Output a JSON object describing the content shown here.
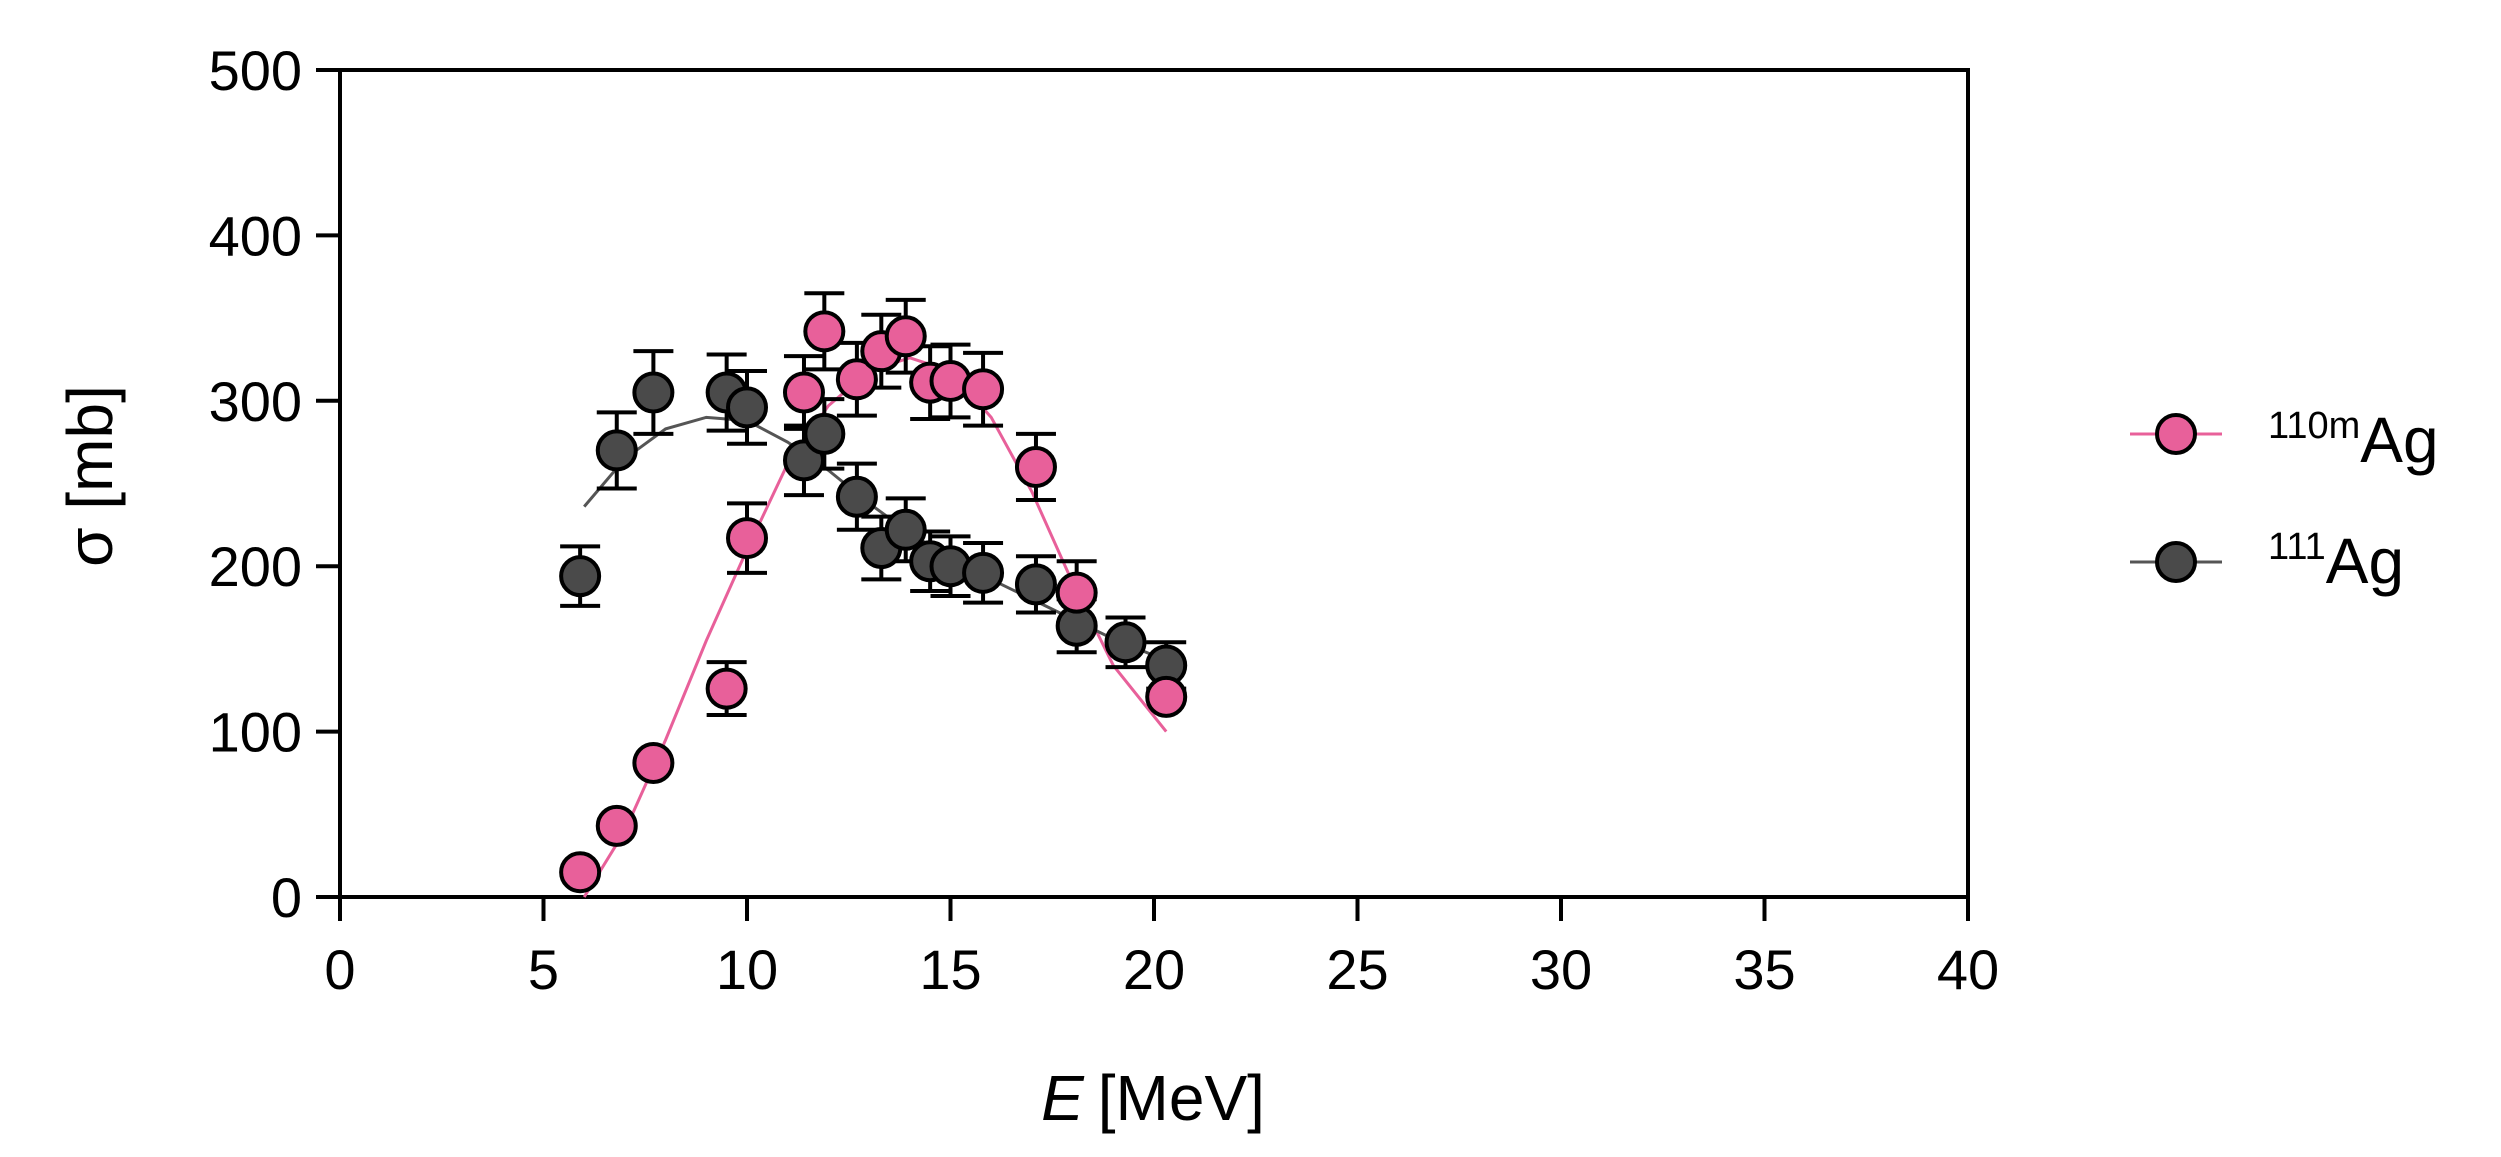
{
  "chart_data": {
    "type": "scatter",
    "xlabel_italic": "E",
    "xlabel_unit": "[MeV]",
    "ylabel": "σ [mb]",
    "xlim": [
      0,
      40
    ],
    "ylim": [
      0,
      500
    ],
    "xticks": [
      "0",
      "5",
      "10",
      "15",
      "20",
      "25",
      "30",
      "35",
      "40"
    ],
    "yticks": [
      "0",
      "100",
      "200",
      "300",
      "400",
      "500"
    ],
    "grid": false,
    "legend_position": "right",
    "series": [
      {
        "name": "110mAg",
        "name_sup": "110m",
        "name_base": "Ag",
        "color": "#e8609a",
        "line_color": "#e8609a",
        "points": [
          {
            "x": 5.9,
            "y": 15,
            "err": 0
          },
          {
            "x": 6.8,
            "y": 43,
            "err": 0
          },
          {
            "x": 7.7,
            "y": 81,
            "err": 0
          },
          {
            "x": 9.5,
            "y": 126,
            "err": 16
          },
          {
            "x": 10.0,
            "y": 217,
            "err": 21
          },
          {
            "x": 11.4,
            "y": 305,
            "err": 22
          },
          {
            "x": 11.9,
            "y": 342,
            "err": 23
          },
          {
            "x": 12.7,
            "y": 313,
            "err": 22
          },
          {
            "x": 13.3,
            "y": 330,
            "err": 22
          },
          {
            "x": 13.9,
            "y": 339,
            "err": 22
          },
          {
            "x": 14.5,
            "y": 311,
            "err": 22
          },
          {
            "x": 15.0,
            "y": 312,
            "err": 22
          },
          {
            "x": 15.8,
            "y": 307,
            "err": 22
          },
          {
            "x": 17.1,
            "y": 260,
            "err": 20
          },
          {
            "x": 18.1,
            "y": 184,
            "err": 19
          },
          {
            "x": 20.3,
            "y": 121,
            "err": 0
          }
        ],
        "fit": [
          [
            6.0,
            0
          ],
          [
            7,
            40
          ],
          [
            8,
            95
          ],
          [
            9,
            155
          ],
          [
            10,
            210
          ],
          [
            11,
            262
          ],
          [
            12,
            297
          ],
          [
            13,
            318
          ],
          [
            14,
            326
          ],
          [
            15,
            318
          ],
          [
            16,
            290
          ],
          [
            17,
            245
          ],
          [
            18,
            190
          ],
          [
            19,
            140
          ],
          [
            20.3,
            100
          ]
        ]
      },
      {
        "name": "111Ag",
        "name_sup": "111",
        "name_base": "Ag",
        "color": "#4a4a4a",
        "line_color": "#555555",
        "points": [
          {
            "x": 5.9,
            "y": 194,
            "err": 18
          },
          {
            "x": 6.8,
            "y": 270,
            "err": 23
          },
          {
            "x": 7.7,
            "y": 305,
            "err": 25
          },
          {
            "x": 9.5,
            "y": 305,
            "err": 23
          },
          {
            "x": 10.0,
            "y": 296,
            "err": 22
          },
          {
            "x": 11.4,
            "y": 264,
            "err": 21
          },
          {
            "x": 11.9,
            "y": 280,
            "err": 21
          },
          {
            "x": 12.7,
            "y": 242,
            "err": 20
          },
          {
            "x": 13.3,
            "y": 211,
            "err": 19
          },
          {
            "x": 13.9,
            "y": 222,
            "err": 19
          },
          {
            "x": 14.5,
            "y": 203,
            "err": 18
          },
          {
            "x": 15.0,
            "y": 200,
            "err": 18
          },
          {
            "x": 15.8,
            "y": 196,
            "err": 18
          },
          {
            "x": 17.1,
            "y": 189,
            "err": 17
          },
          {
            "x": 18.1,
            "y": 164,
            "err": 16
          },
          {
            "x": 19.3,
            "y": 154,
            "err": 15
          },
          {
            "x": 20.3,
            "y": 140,
            "err": 14
          }
        ],
        "fit": [
          [
            6.0,
            236
          ],
          [
            7,
            265
          ],
          [
            8,
            283
          ],
          [
            9,
            290
          ],
          [
            10,
            288
          ],
          [
            11,
            275
          ],
          [
            12,
            258
          ],
          [
            13,
            238
          ],
          [
            14,
            220
          ],
          [
            15,
            205
          ],
          [
            16,
            192
          ],
          [
            17,
            180
          ],
          [
            18,
            168
          ],
          [
            19,
            156
          ],
          [
            20.3,
            143
          ]
        ]
      }
    ]
  }
}
